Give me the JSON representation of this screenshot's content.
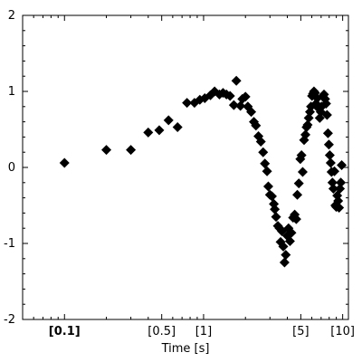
{
  "chart_data": {
    "type": "scatter",
    "title": "",
    "xlabel": "Time [s]",
    "ylabel": "",
    "xscale": "log",
    "xlim": [
      0.05,
      11
    ],
    "ylim": [
      -2,
      2
    ],
    "grid": false,
    "legend": "none",
    "marker": "diamond",
    "marker_color": "#000000",
    "yticks": [
      {
        "value": 2,
        "label": "2"
      },
      {
        "value": 1,
        "label": "1"
      },
      {
        "value": 0,
        "label": "0"
      },
      {
        "value": -1,
        "label": "-1"
      },
      {
        "value": -2,
        "label": "-2"
      }
    ],
    "xticks": [
      {
        "value": 0.1,
        "label": "[0.1]",
        "bold": true
      },
      {
        "value": 0.5,
        "label": "[0.5]",
        "bold": false
      },
      {
        "value": 1,
        "label": "[1]",
        "bold": false
      },
      {
        "value": 5,
        "label": "[5]",
        "bold": false
      },
      {
        "value": 10,
        "label": "[10]",
        "bold": false
      }
    ],
    "points": [
      [
        0.1,
        0.06
      ],
      [
        0.2,
        0.23
      ],
      [
        0.3,
        0.23
      ],
      [
        0.4,
        0.46
      ],
      [
        0.48,
        0.49
      ],
      [
        0.56,
        0.62
      ],
      [
        0.65,
        0.53
      ],
      [
        0.76,
        0.85
      ],
      [
        0.86,
        0.85
      ],
      [
        0.94,
        0.89
      ],
      [
        1.02,
        0.91
      ],
      [
        1.12,
        0.95
      ],
      [
        1.2,
        1.0
      ],
      [
        1.3,
        0.96
      ],
      [
        1.38,
        0.98
      ],
      [
        1.46,
        0.96
      ],
      [
        1.55,
        0.94
      ],
      [
        1.65,
        0.82
      ],
      [
        1.72,
        1.14
      ],
      [
        1.84,
        0.81
      ],
      [
        1.9,
        0.9
      ],
      [
        2.0,
        0.93
      ],
      [
        2.08,
        0.8
      ],
      [
        2.2,
        0.73
      ],
      [
        2.3,
        0.6
      ],
      [
        2.38,
        0.55
      ],
      [
        2.48,
        0.41
      ],
      [
        2.58,
        0.34
      ],
      [
        2.68,
        0.2
      ],
      [
        2.76,
        0.05
      ],
      [
        2.86,
        -0.05
      ],
      [
        2.92,
        -0.25
      ],
      [
        3.0,
        -0.36
      ],
      [
        3.1,
        -0.38
      ],
      [
        3.2,
        -0.48
      ],
      [
        3.25,
        -0.55
      ],
      [
        3.32,
        -0.65
      ],
      [
        3.42,
        -0.77
      ],
      [
        3.52,
        -0.8
      ],
      [
        3.58,
        -0.98
      ],
      [
        3.66,
        -0.84
      ],
      [
        3.74,
        -1.04
      ],
      [
        3.82,
        -1.25
      ],
      [
        3.9,
        -1.15
      ],
      [
        4.0,
        -0.9
      ],
      [
        4.08,
        -0.8
      ],
      [
        4.18,
        -0.97
      ],
      [
        4.28,
        -0.86
      ],
      [
        4.4,
        -0.66
      ],
      [
        4.52,
        -0.62
      ],
      [
        4.64,
        -0.68
      ],
      [
        4.72,
        -0.36
      ],
      [
        4.84,
        -0.21
      ],
      [
        4.96,
        0.11
      ],
      [
        5.06,
        0.16
      ],
      [
        5.16,
        -0.06
      ],
      [
        5.28,
        0.36
      ],
      [
        5.4,
        0.43
      ],
      [
        5.5,
        0.53
      ],
      [
        5.6,
        0.56
      ],
      [
        5.7,
        0.65
      ],
      [
        5.82,
        0.73
      ],
      [
        5.92,
        0.8
      ],
      [
        6.02,
        0.94
      ],
      [
        6.12,
        0.97
      ],
      [
        6.22,
        1.0
      ],
      [
        6.32,
        0.98
      ],
      [
        6.44,
        0.84
      ],
      [
        6.56,
        0.91
      ],
      [
        6.7,
        0.78
      ],
      [
        6.84,
        0.65
      ],
      [
        6.96,
        0.73
      ],
      [
        7.06,
        0.8
      ],
      [
        7.2,
        0.93
      ],
      [
        7.34,
        0.96
      ],
      [
        7.48,
        0.9
      ],
      [
        7.6,
        0.84
      ],
      [
        7.72,
        0.69
      ],
      [
        7.84,
        0.45
      ],
      [
        7.96,
        0.3
      ],
      [
        8.08,
        0.16
      ],
      [
        8.2,
        0.06
      ],
      [
        8.32,
        -0.06
      ],
      [
        8.44,
        -0.2
      ],
      [
        8.58,
        -0.28
      ],
      [
        8.72,
        -0.05
      ],
      [
        8.86,
        -0.5
      ],
      [
        9.0,
        -0.52
      ],
      [
        9.14,
        -0.37
      ],
      [
        9.28,
        -0.44
      ],
      [
        9.42,
        -0.53
      ],
      [
        9.56,
        -0.28
      ],
      [
        9.7,
        -0.2
      ],
      [
        9.84,
        0.03
      ]
    ]
  }
}
